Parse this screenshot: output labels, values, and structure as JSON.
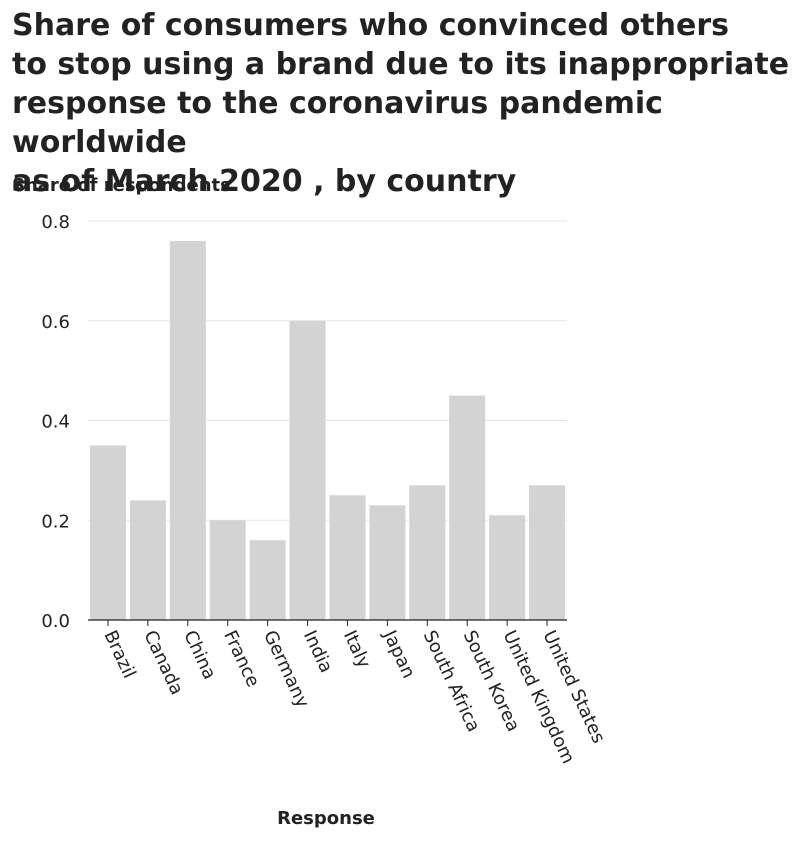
{
  "chart_data": {
    "type": "bar",
    "title": "Share of consumers who convinced others\nto stop using a brand due to its inappropriate\nresponse to the coronavirus pandemic worldwide\nas of March 2020 , by country",
    "xlabel": "Response",
    "ylabel": "Share of respondents",
    "categories": [
      "Brazil",
      "Canada",
      "China",
      "France",
      "Germany",
      "India",
      "Italy",
      "Japan",
      "South Africa",
      "South Korea",
      "United Kingdom",
      "United States"
    ],
    "values": [
      0.35,
      0.24,
      0.76,
      0.2,
      0.16,
      0.6,
      0.25,
      0.23,
      0.27,
      0.45,
      0.21,
      0.27
    ],
    "ylim": [
      0,
      0.8
    ],
    "yticks": [
      "0.0",
      "0.2",
      "0.4",
      "0.6",
      "0.8"
    ],
    "grid": true,
    "bar_color": "#d3d3d3",
    "grid_color": "#e6e6e6"
  }
}
